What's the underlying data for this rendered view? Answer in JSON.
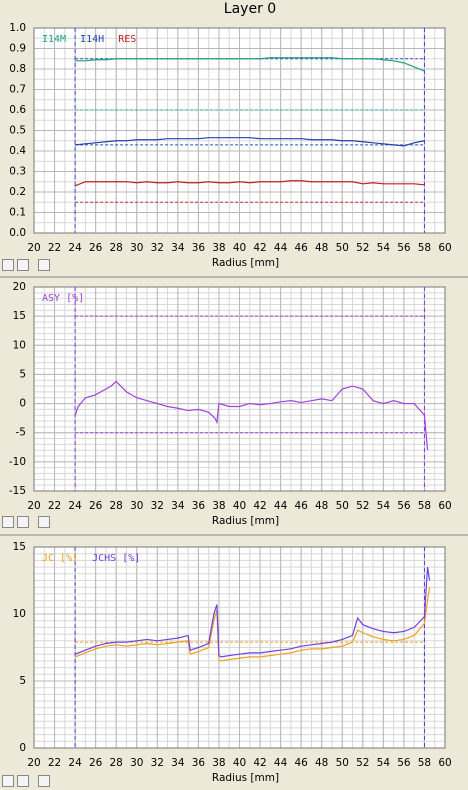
{
  "title": "Layer 0",
  "chart_data": [
    {
      "type": "line",
      "xlabel": "Radius [mm]",
      "xlim": [
        20,
        60
      ],
      "xticks": [
        20,
        22,
        24,
        26,
        28,
        30,
        32,
        34,
        36,
        38,
        40,
        42,
        44,
        46,
        48,
        50,
        52,
        54,
        56,
        58,
        60
      ],
      "ylim": [
        0,
        1
      ],
      "yticks": [
        {
          "value": 0,
          "label": "0.0"
        },
        0.1,
        0.2,
        0.3,
        0.4,
        0.5,
        0.6,
        0.7,
        0.8,
        0.9,
        {
          "value": 1,
          "label": "1.0"
        }
      ],
      "grid": true,
      "minor_grid": {
        "x": 1,
        "y": 0.05
      },
      "markers": [
        24,
        58
      ],
      "marker_color": "#4a3ce0",
      "limits": [
        {
          "value": 0.85,
          "color": "#2a50b8"
        },
        {
          "value": 0.6,
          "color": "#30a8a8"
        },
        {
          "value": 0.43,
          "color": "#2a50b8"
        },
        {
          "value": 0.15,
          "color": "#c03030"
        }
      ],
      "x": [
        24,
        25,
        26,
        27,
        28,
        29,
        30,
        31,
        32,
        33,
        34,
        35,
        36,
        37,
        38,
        39,
        40,
        41,
        42,
        43,
        44,
        45,
        46,
        47,
        48,
        49,
        50,
        51,
        52,
        53,
        54,
        55,
        56,
        57,
        58
      ],
      "series": [
        {
          "name": "I14M",
          "color": "#20a080",
          "values": [
            0.84,
            0.84,
            0.845,
            0.845,
            0.85,
            0.85,
            0.85,
            0.85,
            0.85,
            0.85,
            0.85,
            0.85,
            0.85,
            0.85,
            0.85,
            0.85,
            0.85,
            0.85,
            0.85,
            0.855,
            0.855,
            0.855,
            0.855,
            0.855,
            0.855,
            0.855,
            0.85,
            0.85,
            0.85,
            0.85,
            0.845,
            0.84,
            0.83,
            0.81,
            0.79
          ]
        },
        {
          "name": "I14H",
          "color": "#2040b0",
          "values": [
            0.43,
            0.435,
            0.44,
            0.445,
            0.45,
            0.45,
            0.455,
            0.455,
            0.455,
            0.46,
            0.46,
            0.46,
            0.46,
            0.465,
            0.465,
            0.465,
            0.465,
            0.465,
            0.46,
            0.46,
            0.46,
            0.46,
            0.46,
            0.455,
            0.455,
            0.455,
            0.45,
            0.45,
            0.445,
            0.44,
            0.435,
            0.43,
            0.425,
            0.44,
            0.45
          ]
        },
        {
          "name": "RES",
          "color": "#c02020",
          "values": [
            0.23,
            0.25,
            0.25,
            0.25,
            0.25,
            0.25,
            0.245,
            0.25,
            0.245,
            0.245,
            0.25,
            0.245,
            0.245,
            0.25,
            0.245,
            0.245,
            0.25,
            0.245,
            0.25,
            0.25,
            0.25,
            0.255,
            0.255,
            0.25,
            0.25,
            0.25,
            0.25,
            0.25,
            0.24,
            0.245,
            0.24,
            0.24,
            0.24,
            0.24,
            0.235
          ]
        }
      ]
    },
    {
      "type": "line",
      "xlabel": "Radius [mm]",
      "xlim": [
        20,
        60
      ],
      "xticks": [
        20,
        22,
        24,
        26,
        28,
        30,
        32,
        34,
        36,
        38,
        40,
        42,
        44,
        46,
        48,
        50,
        52,
        54,
        56,
        58,
        60
      ],
      "ylim": [
        -15,
        20
      ],
      "yticks": [
        -15,
        -10,
        -5,
        0,
        5,
        10,
        15,
        20
      ],
      "grid": true,
      "minor_grid": {
        "x": 1,
        "y": 1
      },
      "markers": [
        24,
        58
      ],
      "marker_color": "#7a3ce0",
      "limits": [
        {
          "value": 15,
          "color": "#a040e0"
        },
        {
          "value": -5,
          "color": "#a040e0"
        }
      ],
      "x": [
        24,
        24.3,
        25,
        26,
        27,
        27.5,
        28,
        29,
        30,
        31,
        32,
        33,
        34,
        35,
        36,
        37,
        37.6,
        37.8,
        38,
        39,
        40,
        41,
        42,
        43,
        44,
        45,
        46,
        47,
        48,
        49,
        50,
        51,
        52,
        53,
        54,
        55,
        56,
        57,
        57.5,
        58,
        58.2,
        58.3
      ],
      "series": [
        {
          "name": "ASY [%]",
          "color": "#a040e0",
          "values": [
            -2,
            -0.5,
            1,
            1.5,
            2.5,
            3,
            3.8,
            2,
            1,
            0.5,
            0,
            -0.5,
            -0.8,
            -1.2,
            -1,
            -1.5,
            -2.5,
            -3.2,
            0,
            -0.5,
            -0.5,
            0,
            -0.2,
            0,
            0.3,
            0.5,
            0.2,
            0.5,
            0.8,
            0.5,
            2.5,
            3,
            2.5,
            0.5,
            0,
            0.5,
            0,
            0,
            -1,
            -2,
            -6,
            -8
          ]
        }
      ]
    },
    {
      "type": "line",
      "xlabel": "Radius [mm]",
      "xlim": [
        20,
        60
      ],
      "xticks": [
        20,
        22,
        24,
        26,
        28,
        30,
        32,
        34,
        36,
        38,
        40,
        42,
        44,
        46,
        48,
        50,
        52,
        54,
        56,
        58,
        60
      ],
      "ylim": [
        0,
        15
      ],
      "yticks": [
        0,
        5,
        10,
        15
      ],
      "grid": true,
      "minor_grid": {
        "x": 1,
        "y": 0.5
      },
      "markers": [
        24,
        58
      ],
      "marker_color": "#4a3ce0",
      "limits": [
        {
          "value": 7.9,
          "color": "#f0a020"
        }
      ],
      "x": [
        24,
        25,
        26,
        27,
        28,
        29,
        30,
        31,
        32,
        33,
        34,
        35,
        35.2,
        36,
        37,
        37.5,
        37.8,
        38,
        38.2,
        39,
        40,
        41,
        42,
        43,
        44,
        45,
        46,
        47,
        48,
        49,
        50,
        51,
        51.5,
        52,
        53,
        54,
        55,
        56,
        57,
        58,
        58.3,
        58.5
      ],
      "series": [
        {
          "name": "JC [%]",
          "color": "#f0a020",
          "values": [
            6.8,
            7.1,
            7.4,
            7.6,
            7.7,
            7.6,
            7.7,
            7.8,
            7.7,
            7.8,
            7.9,
            8.0,
            7.0,
            7.2,
            7.5,
            9.5,
            10.3,
            6.6,
            6.5,
            6.6,
            6.7,
            6.8,
            6.8,
            6.9,
            7.0,
            7.1,
            7.3,
            7.4,
            7.4,
            7.5,
            7.6,
            7.9,
            8.8,
            8.6,
            8.3,
            8.1,
            8.0,
            8.1,
            8.4,
            9.3,
            11.0,
            12.0
          ]
        },
        {
          "name": "JCHS [%]",
          "color": "#7040e0",
          "values": [
            7.0,
            7.3,
            7.6,
            7.8,
            7.9,
            7.9,
            8.0,
            8.1,
            8.0,
            8.1,
            8.2,
            8.4,
            7.3,
            7.5,
            7.8,
            10.0,
            10.7,
            6.9,
            6.8,
            6.9,
            7.0,
            7.1,
            7.1,
            7.2,
            7.3,
            7.4,
            7.6,
            7.7,
            7.8,
            7.9,
            8.1,
            8.4,
            9.7,
            9.2,
            8.9,
            8.7,
            8.6,
            8.7,
            9.0,
            9.8,
            13.5,
            12.5
          ]
        }
      ]
    }
  ]
}
